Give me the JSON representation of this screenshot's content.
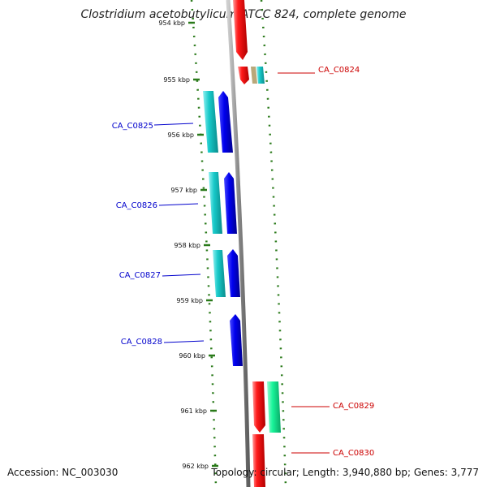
{
  "title": "Clostridium acetobutylicum ATCC 824, complete genome",
  "accession": "Accession: NC_003030",
  "topology": "Topology: circular; Length: 3,940,880 bp; Genes: 3,777",
  "colors": {
    "plus_strand": "#ff0000",
    "minus_strand": "#0000ff",
    "plus_label": "#cc0000",
    "minus_label": "#0000cc",
    "cds_minus": "#17c9c9",
    "cds_plus": "#18f59a",
    "backbone": "#888888",
    "ruler": "#2a7a1a"
  },
  "ticks": [
    "954 kbp",
    "955 kbp",
    "956 kbp",
    "957 kbp",
    "958 kbp",
    "959 kbp",
    "960 kbp",
    "961 kbp",
    "962 kbp"
  ],
  "genes": [
    {
      "id": "CA_C0824",
      "strand": "plus"
    },
    {
      "id": "CA_C0825",
      "strand": "minus"
    },
    {
      "id": "CA_C0826",
      "strand": "minus"
    },
    {
      "id": "CA_C0827",
      "strand": "minus"
    },
    {
      "id": "CA_C0828",
      "strand": "minus"
    },
    {
      "id": "CA_C0829",
      "strand": "plus"
    },
    {
      "id": "CA_C0830",
      "strand": "plus"
    }
  ]
}
